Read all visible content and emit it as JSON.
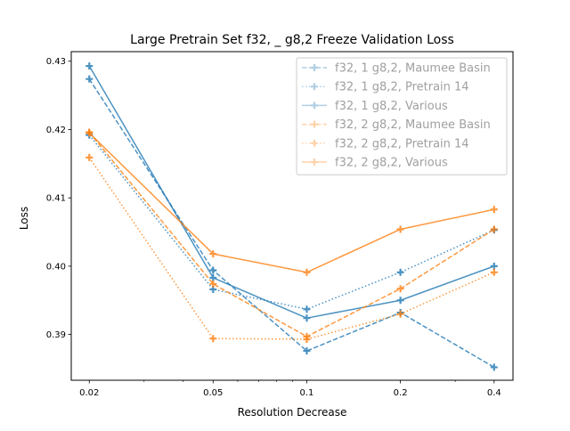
{
  "chart_data": {
    "type": "line",
    "title": "Large Pretrain Set f32, _ g8,2 Freeze Validation Loss",
    "xlabel": "Resolution Decrease",
    "ylabel": "Loss",
    "x_scale": "log",
    "x": [
      0.02,
      0.05,
      0.1,
      0.2,
      0.4
    ],
    "x_tick_labels": [
      "0.02",
      "0.05",
      "0.1",
      "0.2",
      "0.4"
    ],
    "xlim": [
      0.0175,
      0.46
    ],
    "ylim": [
      0.3833,
      0.4314
    ],
    "y_ticks": [
      0.39,
      0.4,
      0.41,
      0.42,
      0.43
    ],
    "y_tick_labels": [
      "0.39",
      "0.40",
      "0.41",
      "0.42",
      "0.43"
    ],
    "grid": false,
    "legend_position": "top-right",
    "series": [
      {
        "name": "f32, 1 g8,2, Maumee Basin",
        "color": "#1f77b4",
        "linestyle": "dashed",
        "marker": "plus",
        "values": [
          0.4274,
          0.3994,
          0.3876,
          0.3932,
          0.3852
        ]
      },
      {
        "name": "f32, 1 g8,2, Pretrain 14",
        "color": "#1f77b4",
        "linestyle": "dotted",
        "marker": "plus",
        "values": [
          0.4192,
          0.3966,
          0.3937,
          0.3991,
          0.4053
        ]
      },
      {
        "name": "f32, 1 g8,2, Various",
        "color": "#1f77b4",
        "linestyle": "solid",
        "marker": "plus",
        "values": [
          0.4293,
          0.3983,
          0.3924,
          0.395,
          0.4
        ]
      },
      {
        "name": "f32, 2 g8,2, Maumee Basin",
        "color": "#ff7f0e",
        "linestyle": "dashed",
        "marker": "plus",
        "values": [
          0.4196,
          0.3974,
          0.3897,
          0.3967,
          0.4054
        ]
      },
      {
        "name": "f32, 2 g8,2, Pretrain 14",
        "color": "#ff7f0e",
        "linestyle": "dotted",
        "marker": "plus",
        "values": [
          0.4159,
          0.3894,
          0.3893,
          0.393,
          0.3991
        ]
      },
      {
        "name": "f32, 2 g8,2, Various",
        "color": "#ff7f0e",
        "linestyle": "solid",
        "marker": "plus",
        "values": [
          0.4195,
          0.4018,
          0.3991,
          0.4054,
          0.4083
        ]
      }
    ]
  }
}
